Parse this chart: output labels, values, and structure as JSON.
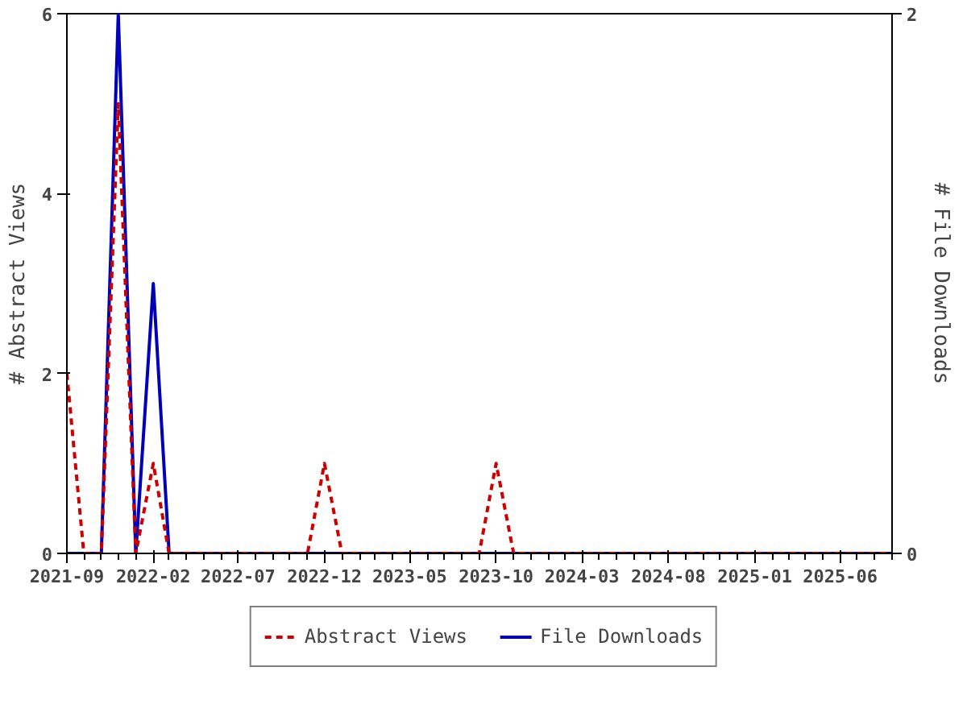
{
  "chart_data": {
    "type": "line",
    "ylabel": "# Abstract Views",
    "y2label": "# File Downloads",
    "x": [
      "2021-09",
      "2021-10",
      "2021-11",
      "2021-12",
      "2022-01",
      "2022-02",
      "2022-03",
      "2022-04",
      "2022-05",
      "2022-06",
      "2022-07",
      "2022-08",
      "2022-09",
      "2022-10",
      "2022-11",
      "2022-12",
      "2023-01",
      "2023-02",
      "2023-03",
      "2023-04",
      "2023-05",
      "2023-06",
      "2023-07",
      "2023-08",
      "2023-09",
      "2023-10",
      "2023-11",
      "2023-12",
      "2024-01",
      "2024-02",
      "2024-03",
      "2024-04",
      "2024-05",
      "2024-06",
      "2024-07",
      "2024-08",
      "2024-09",
      "2024-10",
      "2024-11",
      "2024-12",
      "2025-01",
      "2025-02",
      "2025-03",
      "2025-04",
      "2025-05",
      "2025-06",
      "2025-07",
      "2025-08",
      "2025-09"
    ],
    "series": [
      {
        "name": "Abstract Views",
        "color": "#cc0000",
        "line_style": "dashed",
        "values": [
          2,
          0,
          0,
          5,
          0,
          1,
          0,
          0,
          0,
          0,
          0,
          0,
          0,
          0,
          0,
          1,
          0,
          0,
          0,
          0,
          0,
          0,
          0,
          0,
          0,
          1,
          0,
          0,
          0,
          0,
          0,
          0,
          0,
          0,
          0,
          0,
          0,
          0,
          0,
          0,
          0,
          0,
          0,
          0,
          0,
          0,
          0,
          0,
          0
        ]
      },
      {
        "name": "File Downloads",
        "color": "#0000bb",
        "line_style": "solid",
        "axis": "y2",
        "values": [
          0,
          0,
          0,
          2,
          0,
          1,
          0,
          0,
          0,
          0,
          0,
          0,
          0,
          0,
          0,
          0,
          0,
          0,
          0,
          0,
          0,
          0,
          0,
          0,
          0,
          0,
          0,
          0,
          0,
          0,
          0,
          0,
          0,
          0,
          0,
          0,
          0,
          0,
          0,
          0,
          0,
          0,
          0,
          0,
          0,
          0,
          0,
          0,
          0
        ]
      }
    ],
    "xlim": [
      "2021-09",
      "2025-09"
    ],
    "xticks": [
      "2021-09",
      "2022-02",
      "2022-07",
      "2022-12",
      "2023-05",
      "2023-10",
      "2024-03",
      "2024-08",
      "2025-01",
      "2025-06"
    ],
    "ylim": [
      0,
      6
    ],
    "yticks": [
      0,
      2,
      4,
      6
    ],
    "y2lim": [
      0,
      2
    ],
    "y2ticks": [
      0,
      2
    ],
    "grid": false,
    "legend": "bottom",
    "marker": "none"
  }
}
